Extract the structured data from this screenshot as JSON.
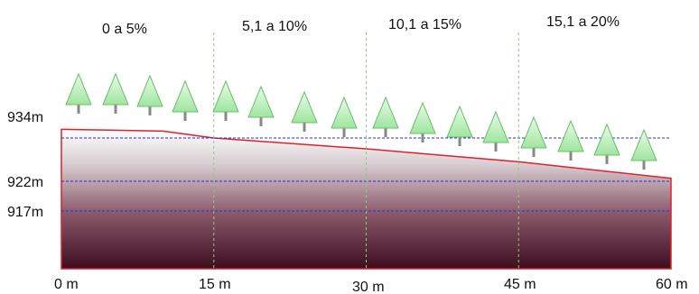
{
  "slope_classes": [
    "0 a 5%",
    "5,1 a 10%",
    "10,1 a 15%",
    "15,1 a 20%"
  ],
  "elevation_labels": [
    "934m",
    "922m",
    "917m"
  ],
  "distance_labels": [
    "0 m",
    "15 m",
    "30 m",
    "45 m",
    "60 m"
  ],
  "chart_data": {
    "type": "area",
    "x": [
      0,
      10,
      15,
      30,
      45,
      60
    ],
    "y": [
      934,
      933.6,
      932,
      929.5,
      926.5,
      922.7
    ],
    "x_tick_labels": [
      "0 m",
      "15 m",
      "30 m",
      "45 m",
      "60 m"
    ],
    "y_reference_lines": [
      932,
      922,
      917
    ],
    "y_tick_labels": [
      "934m",
      "922m",
      "917m"
    ],
    "category_labels": [
      "0 a 5%",
      "5,1 a 10%",
      "10,1 a 15%",
      "15,1 a 20%"
    ],
    "tree_count": 16
  },
  "colors": {
    "profile_outline": "#e0202a",
    "ground_dark": "#3b0d1e",
    "reference_line": "#2b2bd6",
    "segment_divider": "#88cc88",
    "tree_fill": "#b8f0b8",
    "tree_stroke": "#6bbf6b",
    "trunk": "#888888"
  }
}
